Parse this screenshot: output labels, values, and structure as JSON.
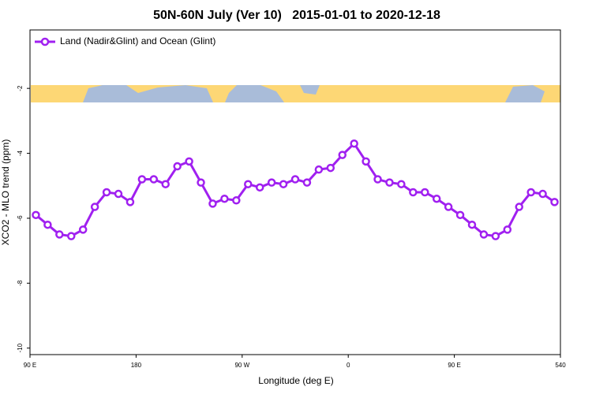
{
  "chart_data": {
    "type": "line",
    "title": "50N-60N July (Ver 10)   2015-01-01 to 2020-12-18",
    "x_label": "Longitude (deg E)",
    "y_label": "XCO2 - MLO trend (ppm)",
    "x": [
      95,
      105,
      115,
      125,
      135,
      145,
      155,
      165,
      175,
      185,
      195,
      205,
      215,
      225,
      235,
      245,
      255,
      265,
      275,
      285,
      295,
      305,
      315,
      325,
      335,
      345,
      355,
      365,
      375,
      385,
      395,
      405,
      415,
      425,
      435,
      445,
      455,
      465,
      475,
      485,
      495,
      505,
      515,
      525,
      535
    ],
    "series": [
      {
        "name": "Land (Nadir&Glint) and Ocean (Glint)",
        "color": "#a020f0",
        "values": [
          -5.9,
          -6.2,
          -6.5,
          -6.55,
          -6.35,
          -5.65,
          -5.2,
          -5.25,
          -5.5,
          -4.8,
          -4.8,
          -4.95,
          -4.4,
          -4.25,
          -4.9,
          -5.55,
          -5.4,
          -5.45,
          -4.95,
          -5.05,
          -4.9,
          -4.95,
          -4.8,
          -4.9,
          -4.5,
          -4.45,
          -4.05,
          -3.7,
          -4.25,
          -4.8,
          -4.9,
          -4.95,
          -5.2,
          -5.2,
          -5.4,
          -5.65,
          -5.9,
          -6.2,
          -6.5,
          -6.55,
          -6.35,
          -5.65,
          -5.2,
          -5.25,
          -5.5
        ]
      }
    ],
    "xlim": [
      90,
      540
    ],
    "xticks": [
      {
        "value": 90,
        "label": "90 E"
      },
      180,
      {
        "value": 270,
        "label": "90 W"
      },
      {
        "value": 360,
        "label": "0"
      },
      {
        "value": 450,
        "label": "90 E"
      },
      540
    ],
    "ylim": [
      -10.2,
      -0.2
    ],
    "yticks": [
      -2,
      -4,
      -6,
      -8,
      -10
    ],
    "legend": "top-left"
  }
}
